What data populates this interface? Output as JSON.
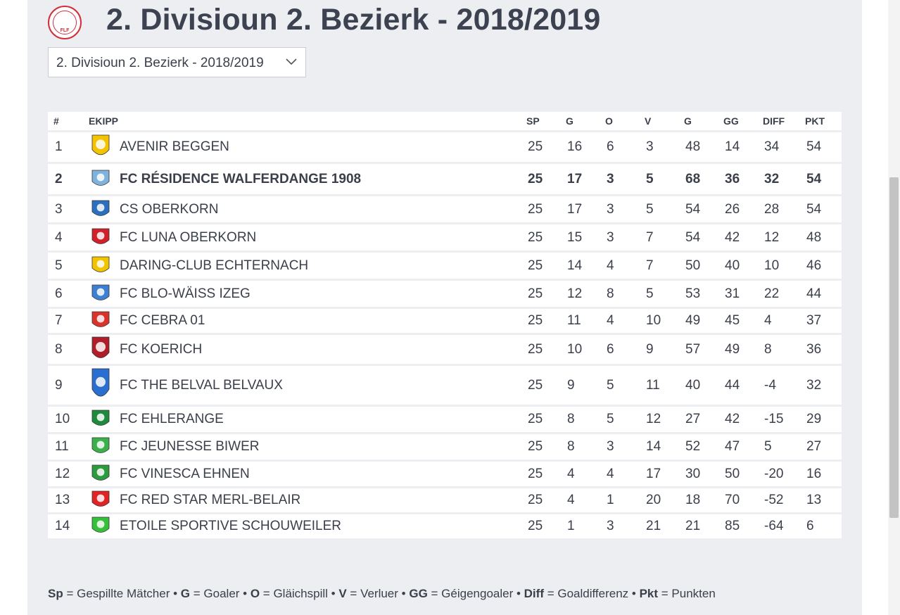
{
  "page": {
    "title": "2. Divisioun 2. Bezierk - 2018/2019",
    "logo_text": "FLF",
    "season_select": {
      "value": "2. Divisioun 2. Bezierk - 2018/2019"
    }
  },
  "table": {
    "headers": [
      "#",
      "EKIPP",
      "SP",
      "G",
      "O",
      "V",
      "G",
      "GG",
      "DIFF",
      "PKT"
    ],
    "rows": [
      {
        "pos": "1",
        "team": "AVENIR BEGGEN",
        "sp": "25",
        "g": "16",
        "o": "6",
        "v": "3",
        "gf": "48",
        "ga": "14",
        "diff": "34",
        "pkt": "54",
        "crest": "beggen-crest",
        "crest_color": "#f3c300"
      },
      {
        "pos": "2",
        "team": "FC RÉSIDENCE WALFERDANGE 1908",
        "sp": "25",
        "g": "17",
        "o": "3",
        "v": "5",
        "gf": "68",
        "ga": "36",
        "diff": "32",
        "pkt": "54",
        "crest": "walferdange-crest",
        "crest_color": "#7fb2dd",
        "highlight": true
      },
      {
        "pos": "3",
        "team": "CS OBERKORN",
        "sp": "25",
        "g": "17",
        "o": "3",
        "v": "5",
        "gf": "54",
        "ga": "26",
        "diff": "28",
        "pkt": "54",
        "crest": "oberkorn-crest",
        "crest_color": "#2b6fbf"
      },
      {
        "pos": "4",
        "team": "FC LUNA OBERKORN",
        "sp": "25",
        "g": "15",
        "o": "3",
        "v": "7",
        "gf": "54",
        "ga": "42",
        "diff": "12",
        "pkt": "48",
        "crest": "luna-crest",
        "crest_color": "#d0202a"
      },
      {
        "pos": "5",
        "team": "DARING-CLUB ECHTERNACH",
        "sp": "25",
        "g": "14",
        "o": "4",
        "v": "7",
        "gf": "50",
        "ga": "40",
        "diff": "10",
        "pkt": "46",
        "crest": "echternach-crest",
        "crest_color": "#f2c400"
      },
      {
        "pos": "6",
        "team": "FC BLO-WÄISS IZEG",
        "sp": "25",
        "g": "12",
        "o": "8",
        "v": "5",
        "gf": "53",
        "ga": "31",
        "diff": "22",
        "pkt": "44",
        "crest": "izeg-crest",
        "crest_color": "#3d7fd0"
      },
      {
        "pos": "7",
        "team": "FC CEBRA 01",
        "sp": "25",
        "g": "11",
        "o": "4",
        "v": "10",
        "gf": "49",
        "ga": "45",
        "diff": "4",
        "pkt": "37",
        "crest": "cebra-crest",
        "crest_color": "#d8342b"
      },
      {
        "pos": "8",
        "team": "FC KOERICH",
        "sp": "25",
        "g": "10",
        "o": "6",
        "v": "9",
        "gf": "57",
        "ga": "49",
        "diff": "8",
        "pkt": "36",
        "crest": "koerich-crest",
        "crest_color": "#b01e2a"
      },
      {
        "pos": "9",
        "team": "FC THE BELVAL BELVAUX",
        "sp": "25",
        "g": "9",
        "o": "5",
        "v": "11",
        "gf": "40",
        "ga": "44",
        "diff": "-4",
        "pkt": "32",
        "crest": "belvaux-crest",
        "crest_color": "#2a6ed0"
      },
      {
        "pos": "10",
        "team": "FC EHLERANGE",
        "sp": "25",
        "g": "8",
        "o": "5",
        "v": "12",
        "gf": "27",
        "ga": "42",
        "diff": "-15",
        "pkt": "29",
        "crest": "ehlerange-crest",
        "crest_color": "#1f8a3c"
      },
      {
        "pos": "11",
        "team": "FC JEUNESSE BIWER",
        "sp": "25",
        "g": "8",
        "o": "3",
        "v": "14",
        "gf": "52",
        "ga": "47",
        "diff": "5",
        "pkt": "27",
        "crest": "biwer-crest",
        "crest_color": "#3bb04a"
      },
      {
        "pos": "12",
        "team": "FC VINESCA EHNEN",
        "sp": "25",
        "g": "4",
        "o": "4",
        "v": "17",
        "gf": "30",
        "ga": "50",
        "diff": "-20",
        "pkt": "16",
        "crest": "ehnen-crest",
        "crest_color": "#2e9a3e"
      },
      {
        "pos": "13",
        "team": "FC RED STAR MERL-BELAIR",
        "sp": "25",
        "g": "4",
        "o": "1",
        "v": "20",
        "gf": "18",
        "ga": "70",
        "diff": "-52",
        "pkt": "13",
        "crest": "merl-crest",
        "crest_color": "#e02424"
      },
      {
        "pos": "14",
        "team": "ETOILE SPORTIVE SCHOUWEILER",
        "sp": "25",
        "g": "1",
        "o": "3",
        "v": "21",
        "gf": "21",
        "ga": "85",
        "diff": "-64",
        "pkt": "6",
        "crest": "schouweiler-crest",
        "crest_color": "#35c03a"
      }
    ]
  },
  "legend": [
    {
      "abbr": "Sp",
      "text": "Gespillte Mätcher"
    },
    {
      "abbr": "G",
      "text": "Goaler"
    },
    {
      "abbr": "O",
      "text": "Gläichspill"
    },
    {
      "abbr": "V",
      "text": "Verluer"
    },
    {
      "abbr": "GG",
      "text": "Géigengoaler"
    },
    {
      "abbr": "Diff",
      "text": "Goaldifferenz"
    },
    {
      "abbr": "Pkt",
      "text": "Punkten"
    }
  ],
  "colors": {
    "background": "#eceef1",
    "text": "#3a3f4a",
    "logo_red": "#d0303b"
  }
}
